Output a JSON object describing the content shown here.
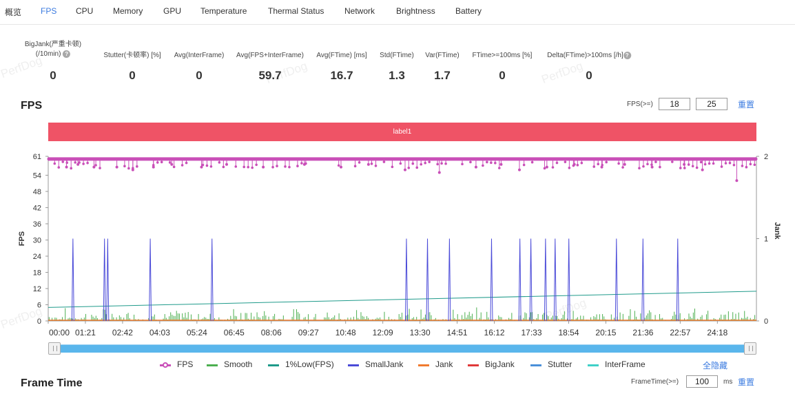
{
  "tabs": [
    {
      "label": "概览",
      "active": false
    },
    {
      "label": "FPS",
      "active": true
    },
    {
      "label": "CPU",
      "active": false
    },
    {
      "label": "Memory",
      "active": false
    },
    {
      "label": "GPU",
      "active": false
    },
    {
      "label": "Temperature",
      "active": false
    },
    {
      "label": "Thermal Status",
      "active": false
    },
    {
      "label": "Network",
      "active": false
    },
    {
      "label": "Brightness",
      "active": false
    },
    {
      "label": "Battery",
      "active": false
    }
  ],
  "stats": [
    {
      "label": "BigJank(严重卡顿)",
      "label2": "(/10min)",
      "help": true,
      "value": "0"
    },
    {
      "label": "Stutter(卡顿率) [%]",
      "help": false,
      "value": "0"
    },
    {
      "label": "Avg(InterFrame)",
      "help": false,
      "value": "0"
    },
    {
      "label": "Avg(FPS+InterFrame)",
      "help": false,
      "value": "59.7"
    },
    {
      "label": "Avg(FTime) [ms]",
      "help": false,
      "value": "16.7"
    },
    {
      "label": "Std(FTime)",
      "help": false,
      "value": "1.3"
    },
    {
      "label": "Var(FTime)",
      "help": false,
      "value": "1.7"
    },
    {
      "label": "FTime>=100ms [%]",
      "help": false,
      "value": "0"
    },
    {
      "label": "Delta(FTime)>100ms [/h]",
      "help": true,
      "value": "0"
    }
  ],
  "watermark": "PerfDog",
  "help_glyph": "?",
  "fps_section": {
    "title": "FPS",
    "threshold_label": "FPS(>=)",
    "threshold_values": [
      "18",
      "25"
    ],
    "reset_label": "重置",
    "label_bar": "label1"
  },
  "chart_data": {
    "type": "line",
    "x_ticks": [
      "00:00",
      "01:21",
      "02:42",
      "04:03",
      "05:24",
      "06:45",
      "08:06",
      "09:27",
      "10:48",
      "12:09",
      "13:30",
      "14:51",
      "16:12",
      "17:33",
      "18:54",
      "20:15",
      "21:36",
      "22:57",
      "24:18"
    ],
    "y_left_label": "FPS",
    "y_left_ticks": [
      0,
      6,
      12,
      18,
      24,
      30,
      36,
      42,
      48,
      54,
      61
    ],
    "y_left_range": [
      0,
      61
    ],
    "y_right_label": "Jank",
    "y_right_ticks": [
      0,
      1,
      2
    ],
    "y_right_range": [
      0,
      2
    ],
    "x_range_seconds": [
      0,
      1548
    ],
    "fps_series": {
      "name": "FPS",
      "baseline": 60,
      "dips": [
        [
          40,
          57
        ],
        [
          65,
          58
        ],
        [
          100,
          57
        ],
        [
          150,
          57
        ],
        [
          185,
          56
        ],
        [
          230,
          57
        ],
        [
          270,
          58
        ],
        [
          335,
          57
        ],
        [
          390,
          58
        ],
        [
          470,
          57
        ],
        [
          560,
          58
        ],
        [
          640,
          57
        ],
        [
          700,
          58
        ],
        [
          780,
          56
        ],
        [
          855,
          55
        ],
        [
          935,
          57
        ],
        [
          990,
          58
        ],
        [
          1030,
          56
        ],
        [
          1090,
          57
        ],
        [
          1150,
          58
        ],
        [
          1210,
          57
        ],
        [
          1260,
          58
        ],
        [
          1320,
          57
        ],
        [
          1390,
          58
        ],
        [
          1430,
          56
        ],
        [
          1505,
          52
        ]
      ]
    },
    "smooth_series": {
      "name": "Smooth",
      "typical_range": [
        0,
        4
      ]
    },
    "low1_series": {
      "name": "1%Low(FPS)",
      "start": 5,
      "end": 11
    },
    "smalljank_series": {
      "name": "SmallJank",
      "spikes": [
        {
          "t": 54,
          "v": 1
        },
        {
          "t": 123,
          "v": 1
        },
        {
          "t": 130,
          "v": 1
        },
        {
          "t": 223,
          "v": 1
        },
        {
          "t": 358,
          "v": 1
        },
        {
          "t": 783,
          "v": 1
        },
        {
          "t": 829,
          "v": 1
        },
        {
          "t": 877,
          "v": 1
        },
        {
          "t": 969,
          "v": 1
        },
        {
          "t": 1031,
          "v": 1
        },
        {
          "t": 1055,
          "v": 1
        },
        {
          "t": 1087,
          "v": 1
        },
        {
          "t": 1108,
          "v": 1
        },
        {
          "t": 1138,
          "v": 1
        },
        {
          "t": 1242,
          "v": 1
        },
        {
          "t": 1300,
          "v": 1
        },
        {
          "t": 1376,
          "v": 1
        }
      ]
    },
    "jank_series": {
      "name": "Jank",
      "value": 0
    },
    "bigjank_series": {
      "name": "BigJank",
      "value": 0
    },
    "stutter_series": {
      "name": "Stutter",
      "value": 0
    },
    "interframe_series": {
      "name": "InterFrame",
      "value": 0
    }
  },
  "legend": [
    {
      "name": "FPS",
      "color": "#c94fb8",
      "dot": true
    },
    {
      "name": "Smooth",
      "color": "#4caf50",
      "dot": false
    },
    {
      "name": "1%Low(FPS)",
      "color": "#1e9a8a",
      "dot": false
    },
    {
      "name": "SmallJank",
      "color": "#4a4ad8",
      "dot": false
    },
    {
      "name": "Jank",
      "color": "#f07b2f",
      "dot": false
    },
    {
      "name": "BigJank",
      "color": "#e03a3a",
      "dot": false
    },
    {
      "name": "Stutter",
      "color": "#4a90d9",
      "dot": false
    },
    {
      "name": "InterFrame",
      "color": "#3fd0c8",
      "dot": false
    }
  ],
  "hide_all_label": "全隐藏",
  "frametime_section": {
    "title": "Frame Time",
    "threshold_label": "FrameTime(>=)",
    "threshold_value": "100",
    "unit": "ms",
    "reset_label": "重置"
  },
  "colors": {
    "accent": "#3b7be0",
    "label_bar": "#ef5366",
    "slider": "#5ab6ec"
  }
}
